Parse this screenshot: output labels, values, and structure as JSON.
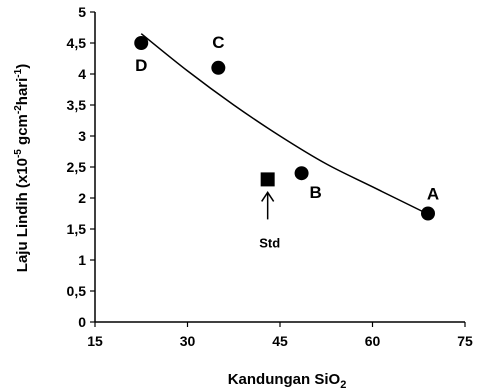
{
  "chart_data": {
    "type": "scatter",
    "xlabel": "Kandungan SiO",
    "xlabel_sub": "2",
    "ylabel_main": "Laju Lindih (x10",
    "ylabel_sup1": "-5",
    "ylabel_mid": " gcm",
    "ylabel_sup2": "-2",
    "ylabel_mid2": "hari",
    "ylabel_sup3": "-1",
    "ylabel_end": ")",
    "xlim": [
      15,
      75
    ],
    "ylim": [
      0,
      5
    ],
    "x_ticks": [
      "15",
      "30",
      "45",
      "60",
      "75"
    ],
    "y_ticks": [
      "0",
      "0,5",
      "1",
      "1,5",
      "2",
      "2,5",
      "3",
      "3,5",
      "4",
      "4,5",
      "5"
    ],
    "x_tick_values": [
      15,
      30,
      45,
      60,
      75
    ],
    "y_tick_values": [
      0,
      0.5,
      1,
      1.5,
      2,
      2.5,
      3,
      3.5,
      4,
      4.5,
      5
    ],
    "series": [
      {
        "marker": "circle",
        "points": [
          {
            "label": "D",
            "x": 22.5,
            "y": 4.5
          },
          {
            "label": "C",
            "x": 35.0,
            "y": 4.1
          },
          {
            "label": "B",
            "x": 48.5,
            "y": 2.4
          },
          {
            "label": "A",
            "x": 69.0,
            "y": 1.75
          }
        ]
      },
      {
        "marker": "square",
        "points": [
          {
            "label": "",
            "x": 43.0,
            "y": 2.3
          }
        ]
      }
    ],
    "trendline": {
      "type": "exponential",
      "x": [
        22.5,
        30,
        37.5,
        45,
        52.5,
        60,
        69
      ],
      "y": [
        4.65,
        4.05,
        3.5,
        3.0,
        2.55,
        2.18,
        1.74
      ]
    },
    "annotation": {
      "text": "Std",
      "x": 43.0
    },
    "grid": false,
    "legend": "none",
    "colors": {
      "marker": "#000000",
      "line": "#000000",
      "axis": "#000000"
    }
  }
}
